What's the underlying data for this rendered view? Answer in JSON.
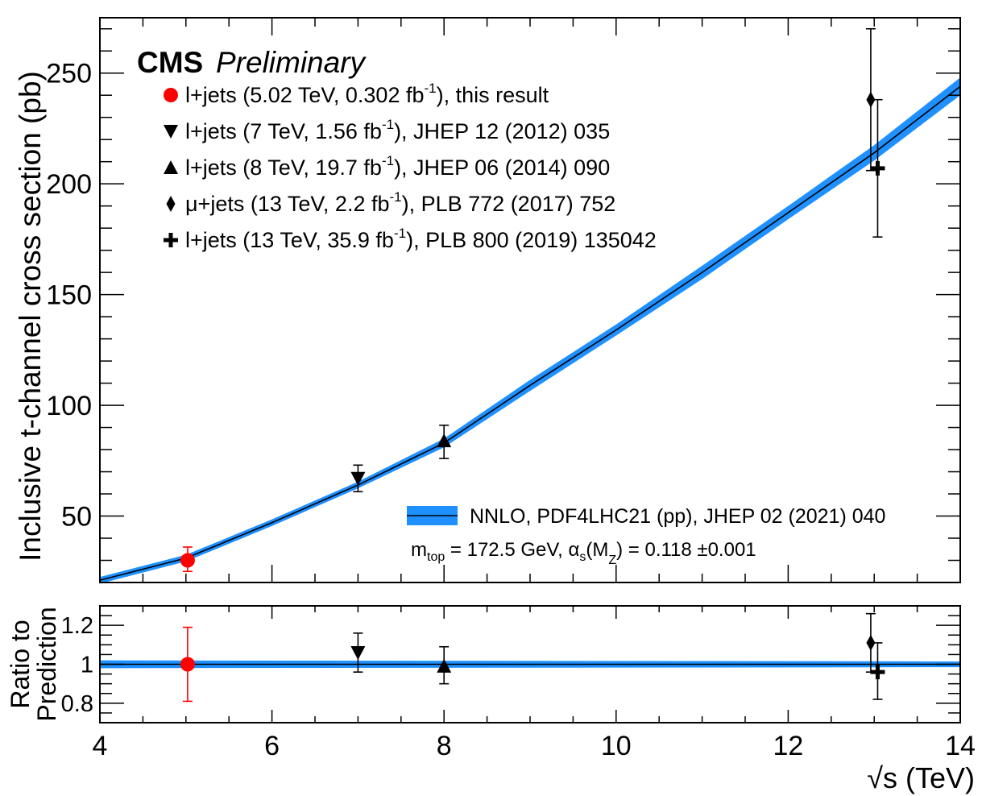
{
  "chart_data": [
    {
      "type": "line",
      "panel": "main",
      "experiment": "CMS",
      "status": "Preliminary",
      "ylabel": "Inclusive t-channel cross section (pb)",
      "xlabel": "√s (TeV)",
      "xlim": [
        4,
        14
      ],
      "ylim": [
        20,
        275
      ],
      "x_ticks": [
        "4",
        "6",
        "8",
        "10",
        "12",
        "14"
      ],
      "y_ticks": [
        "50",
        "100",
        "150",
        "200",
        "250"
      ],
      "prediction": {
        "label": "NNLO, PDF4LHC21 (pp), JHEP 02 (2021) 040",
        "params_label": "m_top = 172.5 GeV, α_s(M_Z) = 0.118 ±0.001",
        "params_parts": [
          "m",
          "top",
          " = 172.5 GeV, α",
          "s",
          "(M",
          "Z",
          ") = 0.118  ±0.001"
        ],
        "color": "#1e90ff",
        "x": [
          4,
          5,
          6,
          7,
          8,
          9,
          10,
          11,
          12,
          13,
          14
        ],
        "y": [
          21,
          31,
          47,
          64,
          83,
          109,
          134,
          160,
          187,
          214,
          244
        ],
        "band": [
          1.5,
          1.5,
          1.5,
          1.5,
          2,
          2.5,
          2.5,
          3,
          3,
          3.5,
          4
        ]
      },
      "legend": [
        {
          "marker": "circle",
          "color": "#ff0000",
          "text": "l+jets (5.02 TeV, 0.302 fb",
          "sup": "-1",
          "post": "), this result"
        },
        {
          "marker": "triangle-down",
          "color": "#000000",
          "text": "l+jets (7 TeV, 1.56 fb",
          "sup": "-1",
          "post": "), JHEP 12 (2012) 035"
        },
        {
          "marker": "triangle-up",
          "color": "#000000",
          "text": "l+jets (8 TeV, 19.7 fb",
          "sup": "-1",
          "post": "), JHEP 06 (2014) 090"
        },
        {
          "marker": "diamond",
          "color": "#000000",
          "text": "μ+jets (13 TeV, 2.2 fb",
          "sup": "-1",
          "post": "), PLB 772 (2017) 752"
        },
        {
          "marker": "cross",
          "color": "#000000",
          "text": "l+jets (13 TeV, 35.9 fb",
          "sup": "-1",
          "post": "), PLB 800 (2019) 135042"
        }
      ],
      "series": [
        {
          "name": "l+jets 5.02 TeV",
          "marker": "circle",
          "color": "#ff0000",
          "x": 5.02,
          "y": 30,
          "yerr_low": 25,
          "yerr_high": 36
        },
        {
          "name": "l+jets 7 TeV",
          "marker": "triangle-down",
          "color": "#000000",
          "x": 7.0,
          "y": 67,
          "yerr_low": 61,
          "yerr_high": 73
        },
        {
          "name": "l+jets 8 TeV",
          "marker": "triangle-up",
          "color": "#000000",
          "x": 8.0,
          "y": 84,
          "yerr_low": 76,
          "yerr_high": 91
        },
        {
          "name": "μ+jets 13 TeV",
          "marker": "diamond",
          "color": "#000000",
          "x": 12.96,
          "y": 238,
          "yerr_low": 206,
          "yerr_high": 270
        },
        {
          "name": "l+jets 13 TeV",
          "marker": "cross",
          "color": "#000000",
          "x": 13.04,
          "y": 207,
          "yerr_low": 176,
          "yerr_high": 238
        }
      ]
    },
    {
      "type": "scatter",
      "panel": "ratio",
      "ylabel_lines": [
        "Ratio to",
        "Prediction"
      ],
      "xlim": [
        4,
        14
      ],
      "ylim": [
        0.7,
        1.3
      ],
      "y_ticks": [
        "0.8",
        "1",
        "1.2"
      ],
      "band": {
        "x": [
          4,
          14
        ],
        "center": [
          1.0,
          1.0
        ],
        "half_width": [
          0.02,
          0.015
        ],
        "color": "#1e90ff"
      },
      "series": [
        {
          "name": "l+jets 5.02 TeV",
          "marker": "circle",
          "color": "#ff0000",
          "x": 5.02,
          "y": 1.0,
          "yerr_low": 0.81,
          "yerr_high": 1.19
        },
        {
          "name": "l+jets 7 TeV",
          "marker": "triangle-down",
          "color": "#000000",
          "x": 7.0,
          "y": 1.06,
          "yerr_low": 0.96,
          "yerr_high": 1.16
        },
        {
          "name": "l+jets 8 TeV",
          "marker": "triangle-up",
          "color": "#000000",
          "x": 8.0,
          "y": 0.99,
          "yerr_low": 0.9,
          "yerr_high": 1.09
        },
        {
          "name": "μ+jets 13 TeV",
          "marker": "diamond",
          "color": "#000000",
          "x": 12.96,
          "y": 1.11,
          "yerr_low": 0.96,
          "yerr_high": 1.26
        },
        {
          "name": "l+jets 13 TeV",
          "marker": "cross",
          "color": "#000000",
          "x": 13.04,
          "y": 0.96,
          "yerr_low": 0.82,
          "yerr_high": 1.11
        }
      ]
    }
  ]
}
